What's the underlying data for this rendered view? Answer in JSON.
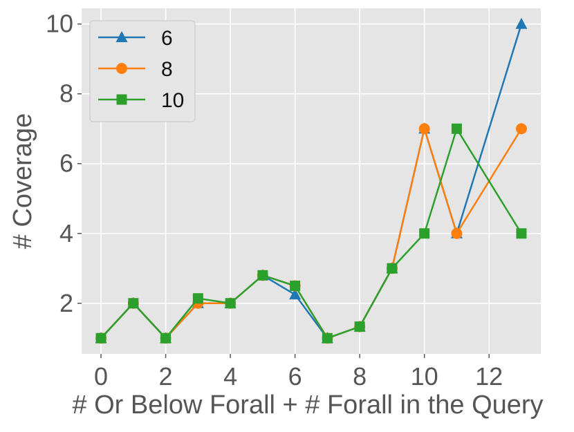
{
  "chart_data": {
    "type": "line",
    "title": "",
    "xlabel": "# Or Below Forall + # Forall in the Query",
    "ylabel": "# Coverage",
    "xlim": [
      -0.6,
      13.6
    ],
    "ylim": [
      0.55,
      10.45
    ],
    "xticks": [
      0,
      2,
      4,
      6,
      8,
      10,
      12
    ],
    "yticks": [
      2,
      4,
      6,
      8,
      10
    ],
    "grid": true,
    "legend_position": "top-left",
    "background": "#e5e5e5",
    "series": [
      {
        "name": "6",
        "color": "#1f77b4",
        "marker": "triangle",
        "x": [
          0,
          1,
          2,
          3,
          4,
          5,
          6,
          7,
          8,
          9,
          10,
          11,
          13
        ],
        "y": [
          1,
          2,
          1,
          2,
          2,
          2.8,
          2.25,
          1,
          1.33,
          3,
          7,
          4,
          10
        ]
      },
      {
        "name": "8",
        "color": "#ff7f0e",
        "marker": "circle",
        "x": [
          0,
          1,
          2,
          3,
          4,
          5,
          6,
          7,
          8,
          9,
          10,
          11,
          13
        ],
        "y": [
          1,
          2,
          1,
          2,
          2,
          2.8,
          2.5,
          1,
          1.33,
          3,
          7,
          4,
          7
        ]
      },
      {
        "name": "10",
        "color": "#2ca02c",
        "marker": "square",
        "x": [
          0,
          1,
          2,
          3,
          4,
          5,
          6,
          7,
          8,
          9,
          10,
          11,
          13
        ],
        "y": [
          1,
          2,
          1,
          2.14,
          2,
          2.8,
          2.5,
          1,
          1.33,
          3,
          4,
          7,
          4
        ]
      }
    ]
  }
}
